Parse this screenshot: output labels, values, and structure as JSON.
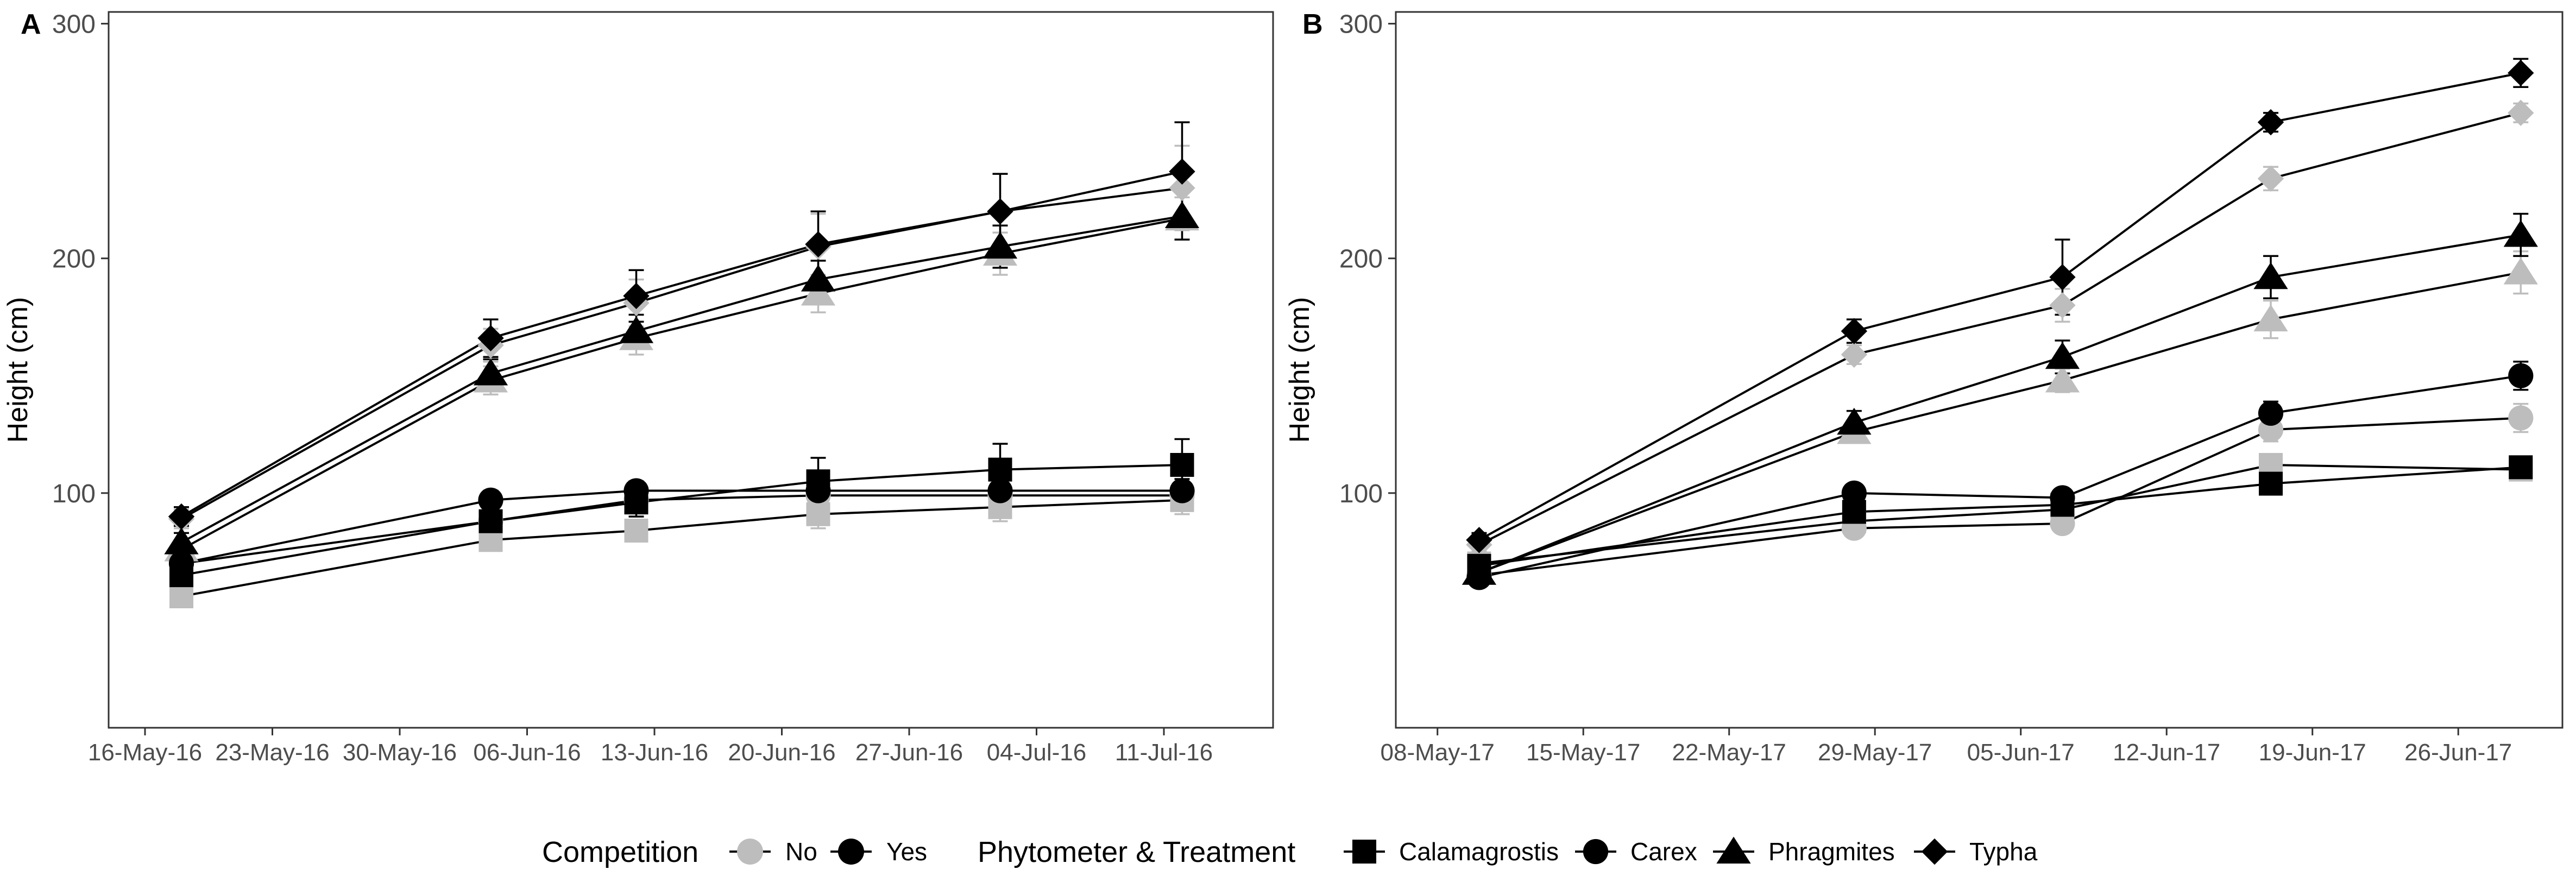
{
  "chart_data": [
    {
      "panel_label": "A",
      "type": "line",
      "ylabel": "Height (cm)",
      "xlabel": "",
      "ylim": [
        0,
        305
      ],
      "xlim": [
        "2016-05-14",
        "2016-07-17"
      ],
      "yticks": [
        100,
        200,
        300
      ],
      "xticks": [
        {
          "date": "2016-05-16",
          "label": "16-May-16"
        },
        {
          "date": "2016-05-23",
          "label": "23-May-16"
        },
        {
          "date": "2016-05-30",
          "label": "30-May-16"
        },
        {
          "date": "2016-06-06",
          "label": "06-Jun-16"
        },
        {
          "date": "2016-06-13",
          "label": "13-Jun-16"
        },
        {
          "date": "2016-06-20",
          "label": "20-Jun-16"
        },
        {
          "date": "2016-06-27",
          "label": "27-Jun-16"
        },
        {
          "date": "2016-07-04",
          "label": "04-Jul-16"
        },
        {
          "date": "2016-07-11",
          "label": "11-Jul-16"
        }
      ],
      "x": [
        "2016-05-18",
        "2016-06-04",
        "2016-06-12",
        "2016-06-22",
        "2016-07-02",
        "2016-07-12"
      ],
      "grid": false,
      "series": [
        {
          "phytometer": "Calamagrostis",
          "competition": "No",
          "values": [
            56,
            80,
            84,
            91,
            94,
            97
          ],
          "errors": [
            3,
            4,
            4,
            6,
            6,
            6
          ]
        },
        {
          "phytometer": "Calamagrostis",
          "competition": "Yes",
          "values": [
            65,
            88,
            96,
            105,
            110,
            112
          ],
          "errors": [
            4,
            5,
            6,
            10,
            11,
            11
          ]
        },
        {
          "phytometer": "Carex",
          "competition": "No",
          "values": [
            70,
            88,
            97,
            99,
            99,
            99
          ],
          "errors": [
            3,
            4,
            4,
            5,
            5,
            5
          ]
        },
        {
          "phytometer": "Carex",
          "competition": "Yes",
          "values": [
            70,
            97,
            101,
            101,
            101,
            101
          ],
          "errors": [
            3,
            4,
            4,
            5,
            5,
            5
          ]
        },
        {
          "phytometer": "Phragmites",
          "competition": "No",
          "values": [
            76,
            148,
            166,
            185,
            202,
            217
          ],
          "errors": [
            4,
            6,
            7,
            8,
            9,
            9
          ]
        },
        {
          "phytometer": "Phragmites",
          "competition": "Yes",
          "values": [
            79,
            151,
            169,
            191,
            205,
            218
          ],
          "errors": [
            4,
            6,
            7,
            8,
            9,
            10
          ]
        },
        {
          "phytometer": "Typha",
          "competition": "No",
          "values": [
            89,
            163,
            181,
            205,
            220,
            230
          ],
          "errors": [
            4,
            7,
            10,
            14,
            16,
            18
          ]
        },
        {
          "phytometer": "Typha",
          "competition": "Yes",
          "values": [
            90,
            166,
            184,
            206,
            220,
            237
          ],
          "errors": [
            4,
            8,
            11,
            14,
            16,
            21
          ]
        }
      ]
    },
    {
      "panel_label": "B",
      "type": "line",
      "ylabel": "Height (cm)",
      "xlabel": "",
      "ylim": [
        0,
        305
      ],
      "xlim": [
        "2017-05-06",
        "2017-07-01"
      ],
      "yticks": [
        100,
        200,
        300
      ],
      "xticks": [
        {
          "date": "2017-05-08",
          "label": "08-May-17"
        },
        {
          "date": "2017-05-15",
          "label": "15-May-17"
        },
        {
          "date": "2017-05-22",
          "label": "22-May-17"
        },
        {
          "date": "2017-05-29",
          "label": "29-May-17"
        },
        {
          "date": "2017-06-05",
          "label": "05-Jun-17"
        },
        {
          "date": "2017-06-12",
          "label": "12-Jun-17"
        },
        {
          "date": "2017-06-19",
          "label": "19-Jun-17"
        },
        {
          "date": "2017-06-26",
          "label": "26-Jun-17"
        }
      ],
      "x": [
        "2017-05-10",
        "2017-05-28",
        "2017-06-07",
        "2017-06-17",
        "2017-06-29"
      ],
      "grid": false,
      "series": [
        {
          "phytometer": "Calamagrostis",
          "competition": "No",
          "values": [
            70,
            88,
            93,
            112,
            110
          ],
          "errors": [
            3,
            3,
            3,
            4,
            4
          ]
        },
        {
          "phytometer": "Calamagrostis",
          "competition": "Yes",
          "values": [
            69,
            92,
            95,
            104,
            111
          ],
          "errors": [
            3,
            3,
            3,
            4,
            4
          ]
        },
        {
          "phytometer": "Carex",
          "competition": "No",
          "values": [
            65,
            85,
            87,
            127,
            132
          ],
          "errors": [
            3,
            3,
            3,
            5,
            6
          ]
        },
        {
          "phytometer": "Carex",
          "competition": "Yes",
          "values": [
            64,
            100,
            98,
            134,
            150
          ],
          "errors": [
            3,
            3,
            3,
            5,
            6
          ]
        },
        {
          "phytometer": "Phragmites",
          "competition": "No",
          "values": [
            66,
            126,
            148,
            174,
            194
          ],
          "errors": [
            3,
            4,
            5,
            8,
            9
          ]
        },
        {
          "phytometer": "Phragmites",
          "competition": "Yes",
          "values": [
            66,
            130,
            158,
            192,
            210
          ],
          "errors": [
            3,
            5,
            7,
            9,
            9
          ]
        },
        {
          "phytometer": "Typha",
          "competition": "No",
          "values": [
            78,
            159,
            180,
            234,
            262
          ],
          "errors": [
            3,
            4,
            7,
            5,
            4
          ]
        },
        {
          "phytometer": "Typha",
          "competition": "Yes",
          "values": [
            80,
            169,
            192,
            258,
            279
          ],
          "errors": [
            3,
            5,
            16,
            4,
            6
          ]
        }
      ]
    }
  ],
  "legend": {
    "competition_title": "Competition",
    "competition_items": [
      {
        "label": "No",
        "color": "#bdbdbd"
      },
      {
        "label": "Yes",
        "color": "#000000"
      }
    ],
    "phytometer_title": "Phytometer & Treatment",
    "phytometer_items": [
      {
        "label": "Calamagrostis",
        "shape": "square"
      },
      {
        "label": "Carex",
        "shape": "circle"
      },
      {
        "label": "Phragmites",
        "shape": "triangle"
      },
      {
        "label": "Typha",
        "shape": "diamond"
      }
    ],
    "placement": "bottom"
  },
  "colors": {
    "No": "#bdbdbd",
    "Yes": "#000000",
    "line": "#000000",
    "axis": "#333333"
  }
}
